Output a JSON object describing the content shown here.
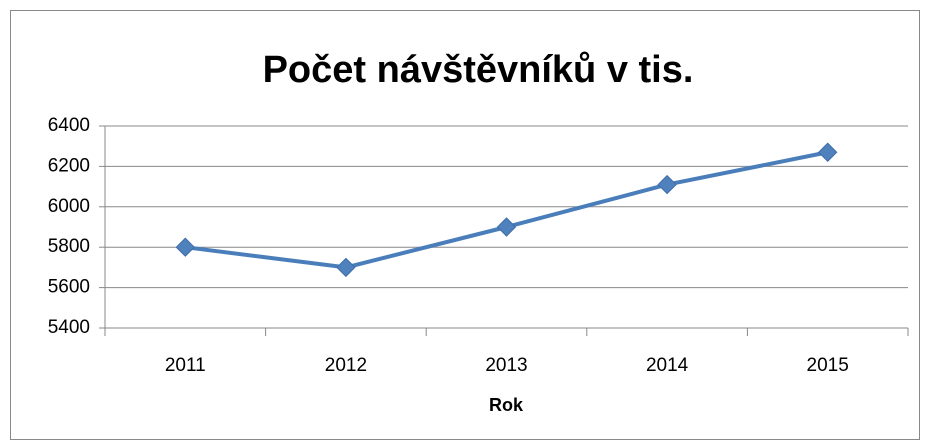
{
  "chart_data": {
    "type": "line",
    "title": "Počet návštěvníků v tis.",
    "x_label": "Rok",
    "categories": [
      "2011",
      "2012",
      "2013",
      "2014",
      "2015"
    ],
    "series": [
      {
        "name": "Počet návštěvníků v tis.",
        "color": "#4a7ebb",
        "values": [
          5800,
          5700,
          5900,
          6110,
          6270
        ]
      }
    ],
    "ylim": [
      5400,
      6400
    ],
    "yticks": [
      5400,
      5600,
      5800,
      6000,
      6200,
      6400
    ],
    "grid": true
  }
}
